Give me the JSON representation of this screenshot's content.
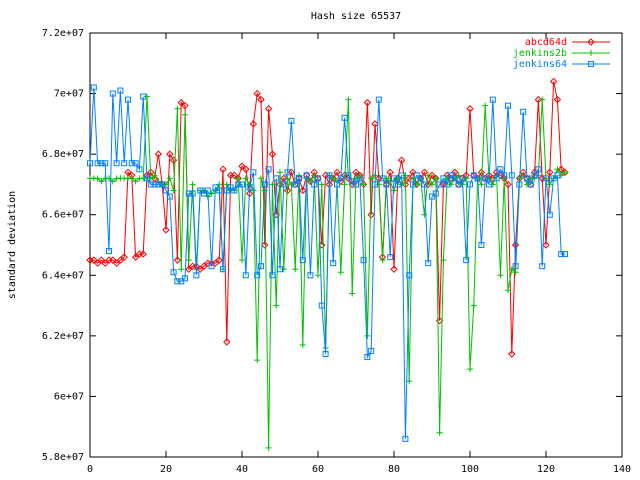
{
  "chart_data": {
    "type": "line",
    "title": "Hash size 65537",
    "ylabel": "standard deviation",
    "x": [
      0,
      1,
      2,
      3,
      4,
      5,
      6,
      7,
      8,
      9,
      10,
      11,
      12,
      13,
      14,
      15,
      16,
      17,
      18,
      19,
      20,
      21,
      22,
      23,
      24,
      25,
      26,
      27,
      28,
      29,
      30,
      31,
      32,
      33,
      34,
      35,
      36,
      37,
      38,
      39,
      40,
      41,
      42,
      43,
      44,
      45,
      46,
      47,
      48,
      49,
      50,
      51,
      52,
      53,
      54,
      55,
      56,
      57,
      58,
      59,
      60,
      61,
      62,
      63,
      64,
      65,
      66,
      67,
      68,
      69,
      70,
      71,
      72,
      73,
      74,
      75,
      76,
      77,
      78,
      79,
      80,
      81,
      82,
      83,
      84,
      85,
      86,
      87,
      88,
      89,
      90,
      91,
      92,
      93,
      94,
      95,
      96,
      97,
      98,
      99,
      100,
      101,
      102,
      103,
      104,
      105,
      106,
      107,
      108,
      109,
      110,
      111,
      112,
      113,
      114,
      115,
      116,
      117,
      118,
      119,
      120,
      121,
      122,
      123,
      124,
      125
    ],
    "series": [
      {
        "name": "abcd64d",
        "color": "#ff0000",
        "marker": "diamond",
        "values": [
          64500000.0,
          64500000.0,
          64400000.0,
          64500000.0,
          64400000.0,
          64500000.0,
          64500000.0,
          64400000.0,
          64500000.0,
          64600000.0,
          67400000.0,
          67300000.0,
          64600000.0,
          64700000.0,
          64700000.0,
          67300000.0,
          67400000.0,
          67200000.0,
          68000000.0,
          67000000.0,
          65500000.0,
          68000000.0,
          67800000.0,
          64500000.0,
          69700000.0,
          69600000.0,
          64200000.0,
          64300000.0,
          64300000.0,
          64200000.0,
          64300000.0,
          64400000.0,
          64400000.0,
          64400000.0,
          64500000.0,
          67500000.0,
          61800000.0,
          67300000.0,
          67300000.0,
          67200000.0,
          67600000.0,
          67500000.0,
          66700000.0,
          69000000.0,
          70000000.0,
          69800000.0,
          65000000.0,
          69500000.0,
          68000000.0,
          66000000.0,
          67000000.0,
          67200000.0,
          66800000.0,
          67400000.0,
          67000000.0,
          67200000.0,
          66800000.0,
          67300000.0,
          67100000.0,
          67400000.0,
          67200000.0,
          65000000.0,
          67300000.0,
          67000000.0,
          67200000.0,
          67400000.0,
          67100000.0,
          67300000.0,
          67200000.0,
          67000000.0,
          67400000.0,
          67300000.0,
          67000000.0,
          69700000.0,
          66000000.0,
          69000000.0,
          67200000.0,
          64600000.0,
          67000000.0,
          67400000.0,
          64200000.0,
          67200000.0,
          67800000.0,
          67000000.0,
          67200000.0,
          67400000.0,
          67000000.0,
          67200000.0,
          67400000.0,
          67000000.0,
          67300000.0,
          67200000.0,
          62500000.0,
          67000000.0,
          67300000.0,
          67200000.0,
          67400000.0,
          67000000.0,
          67200000.0,
          67300000.0,
          69500000.0,
          67300000.0,
          67200000.0,
          67400000.0,
          67200000.0,
          67300000.0,
          67200000.0,
          67400000.0,
          67300000.0,
          67200000.0,
          67000000.0,
          61400000.0,
          65000000.0,
          67200000.0,
          67400000.0,
          67200000.0,
          67000000.0,
          67400000.0,
          69800000.0,
          67200000.0,
          65000000.0,
          67400000.0,
          70400000.0,
          69800000.0,
          67500000.0,
          67400000.0
        ]
      },
      {
        "name": "jenkins2b",
        "color": "#00c000",
        "marker": "plus",
        "values": [
          67200000.0,
          67200000.0,
          67200000.0,
          67100000.0,
          67200000.0,
          67200000.0,
          67100000.0,
          67200000.0,
          67200000.0,
          67200000.0,
          67200000.0,
          67200000.0,
          67100000.0,
          67200000.0,
          67200000.0,
          69900000.0,
          67200000.0,
          67300000.0,
          67100000.0,
          67000000.0,
          67000000.0,
          67200000.0,
          66800000.0,
          69500000.0,
          64200000.0,
          69300000.0,
          64500000.0,
          67000000.0,
          64200000.0,
          66800000.0,
          66800000.0,
          66600000.0,
          66700000.0,
          66800000.0,
          67000000.0,
          64200000.0,
          67000000.0,
          66800000.0,
          66800000.0,
          67200000.0,
          64500000.0,
          67200000.0,
          67000000.0,
          66800000.0,
          61200000.0,
          67200000.0,
          66800000.0,
          58300000.0,
          67000000.0,
          63000000.0,
          67400000.0,
          64200000.0,
          67200000.0,
          67000000.0,
          64200000.0,
          67300000.0,
          61700000.0,
          67200000.0,
          67100000.0,
          67300000.0,
          64000000.0,
          67000000.0,
          61600000.0,
          67300000.0,
          67200000.0,
          67100000.0,
          64100000.0,
          67000000.0,
          69800000.0,
          63400000.0,
          67200000.0,
          67300000.0,
          67000000.0,
          62000000.0,
          67200000.0,
          67300000.0,
          67000000.0,
          64500000.0,
          67200000.0,
          67100000.0,
          66800000.0,
          67200000.0,
          67000000.0,
          67300000.0,
          60500000.0,
          67200000.0,
          67000000.0,
          67200000.0,
          66000000.0,
          67300000.0,
          67000000.0,
          67200000.0,
          58800000.0,
          64500000.0,
          67200000.0,
          67000000.0,
          67200000.0,
          67300000.0,
          67000000.0,
          67200000.0,
          60900000.0,
          63000000.0,
          67200000.0,
          67000000.0,
          69600000.0,
          67200000.0,
          67000000.0,
          67300000.0,
          64000000.0,
          67200000.0,
          63500000.0,
          64200000.0,
          64100000.0,
          67200000.0,
          67300000.0,
          67000000.0,
          67200000.0,
          67200000.0,
          67300000.0,
          69800000.0,
          67200000.0,
          67000000.0,
          67200000.0,
          67500000.0,
          67300000.0,
          67400000.0
        ]
      },
      {
        "name": "jenkins64",
        "color": "#0080ff",
        "marker": "square",
        "values": [
          67700000.0,
          70200000.0,
          67700000.0,
          67700000.0,
          67700000.0,
          64800000.0,
          70000000.0,
          67700000.0,
          70100000.0,
          67700000.0,
          69800000.0,
          67700000.0,
          67700000.0,
          67500000.0,
          69900000.0,
          67200000.0,
          67000000.0,
          67000000.0,
          67000000.0,
          67000000.0,
          66800000.0,
          66600000.0,
          64100000.0,
          63800000.0,
          63800000.0,
          63900000.0,
          66700000.0,
          66700000.0,
          64000000.0,
          66800000.0,
          66700000.0,
          66800000.0,
          64300000.0,
          66900000.0,
          66800000.0,
          64200000.0,
          66800000.0,
          66900000.0,
          66800000.0,
          67000000.0,
          67000000.0,
          64000000.0,
          66900000.0,
          67400000.0,
          64000000.0,
          64300000.0,
          67000000.0,
          67500000.0,
          64000000.0,
          67200000.0,
          64200000.0,
          67000000.0,
          67400000.0,
          69100000.0,
          67000000.0,
          67200000.0,
          64500000.0,
          67300000.0,
          64000000.0,
          67000000.0,
          67200000.0,
          63000000.0,
          61400000.0,
          67300000.0,
          64400000.0,
          67000000.0,
          67200000.0,
          69200000.0,
          67300000.0,
          67100000.0,
          67000000.0,
          67200000.0,
          64500000.0,
          61300000.0,
          61500000.0,
          67000000.0,
          69800000.0,
          67200000.0,
          67000000.0,
          64600000.0,
          67200000.0,
          67000000.0,
          67300000.0,
          58600000.0,
          64000000.0,
          67000000.0,
          67300000.0,
          67200000.0,
          67000000.0,
          64400000.0,
          66600000.0,
          66700000.0,
          67000000.0,
          67200000.0,
          67000000.0,
          67300000.0,
          67200000.0,
          67000000.0,
          67200000.0,
          64500000.0,
          67000000.0,
          67300000.0,
          67200000.0,
          65000000.0,
          67200000.0,
          67000000.0,
          69800000.0,
          67200000.0,
          67500000.0,
          67300000.0,
          69600000.0,
          67300000.0,
          64300000.0,
          67000000.0,
          69400000.0,
          67200000.0,
          67000000.0,
          67300000.0,
          67500000.0,
          64300000.0,
          67200000.0,
          66000000.0,
          67200000.0,
          67300000.0,
          64700000.0,
          64700000.0
        ]
      }
    ],
    "xlim": [
      0,
      140
    ],
    "xticks": [
      0,
      20,
      40,
      60,
      80,
      100,
      120,
      140
    ],
    "ylim": [
      58000000,
      72000000
    ],
    "yticks": [
      {
        "value": 58000000,
        "label": "5.8e+07"
      },
      {
        "value": 60000000,
        "label": "6e+07"
      },
      {
        "value": 62000000,
        "label": "6.2e+07"
      },
      {
        "value": 64000000,
        "label": "6.4e+07"
      },
      {
        "value": 66000000,
        "label": "6.6e+07"
      },
      {
        "value": 68000000,
        "label": "6.8e+07"
      },
      {
        "value": 70000000,
        "label": "7e+07"
      },
      {
        "value": 72000000,
        "label": "7.2e+07"
      }
    ],
    "grid": false,
    "legend": "upper right"
  }
}
